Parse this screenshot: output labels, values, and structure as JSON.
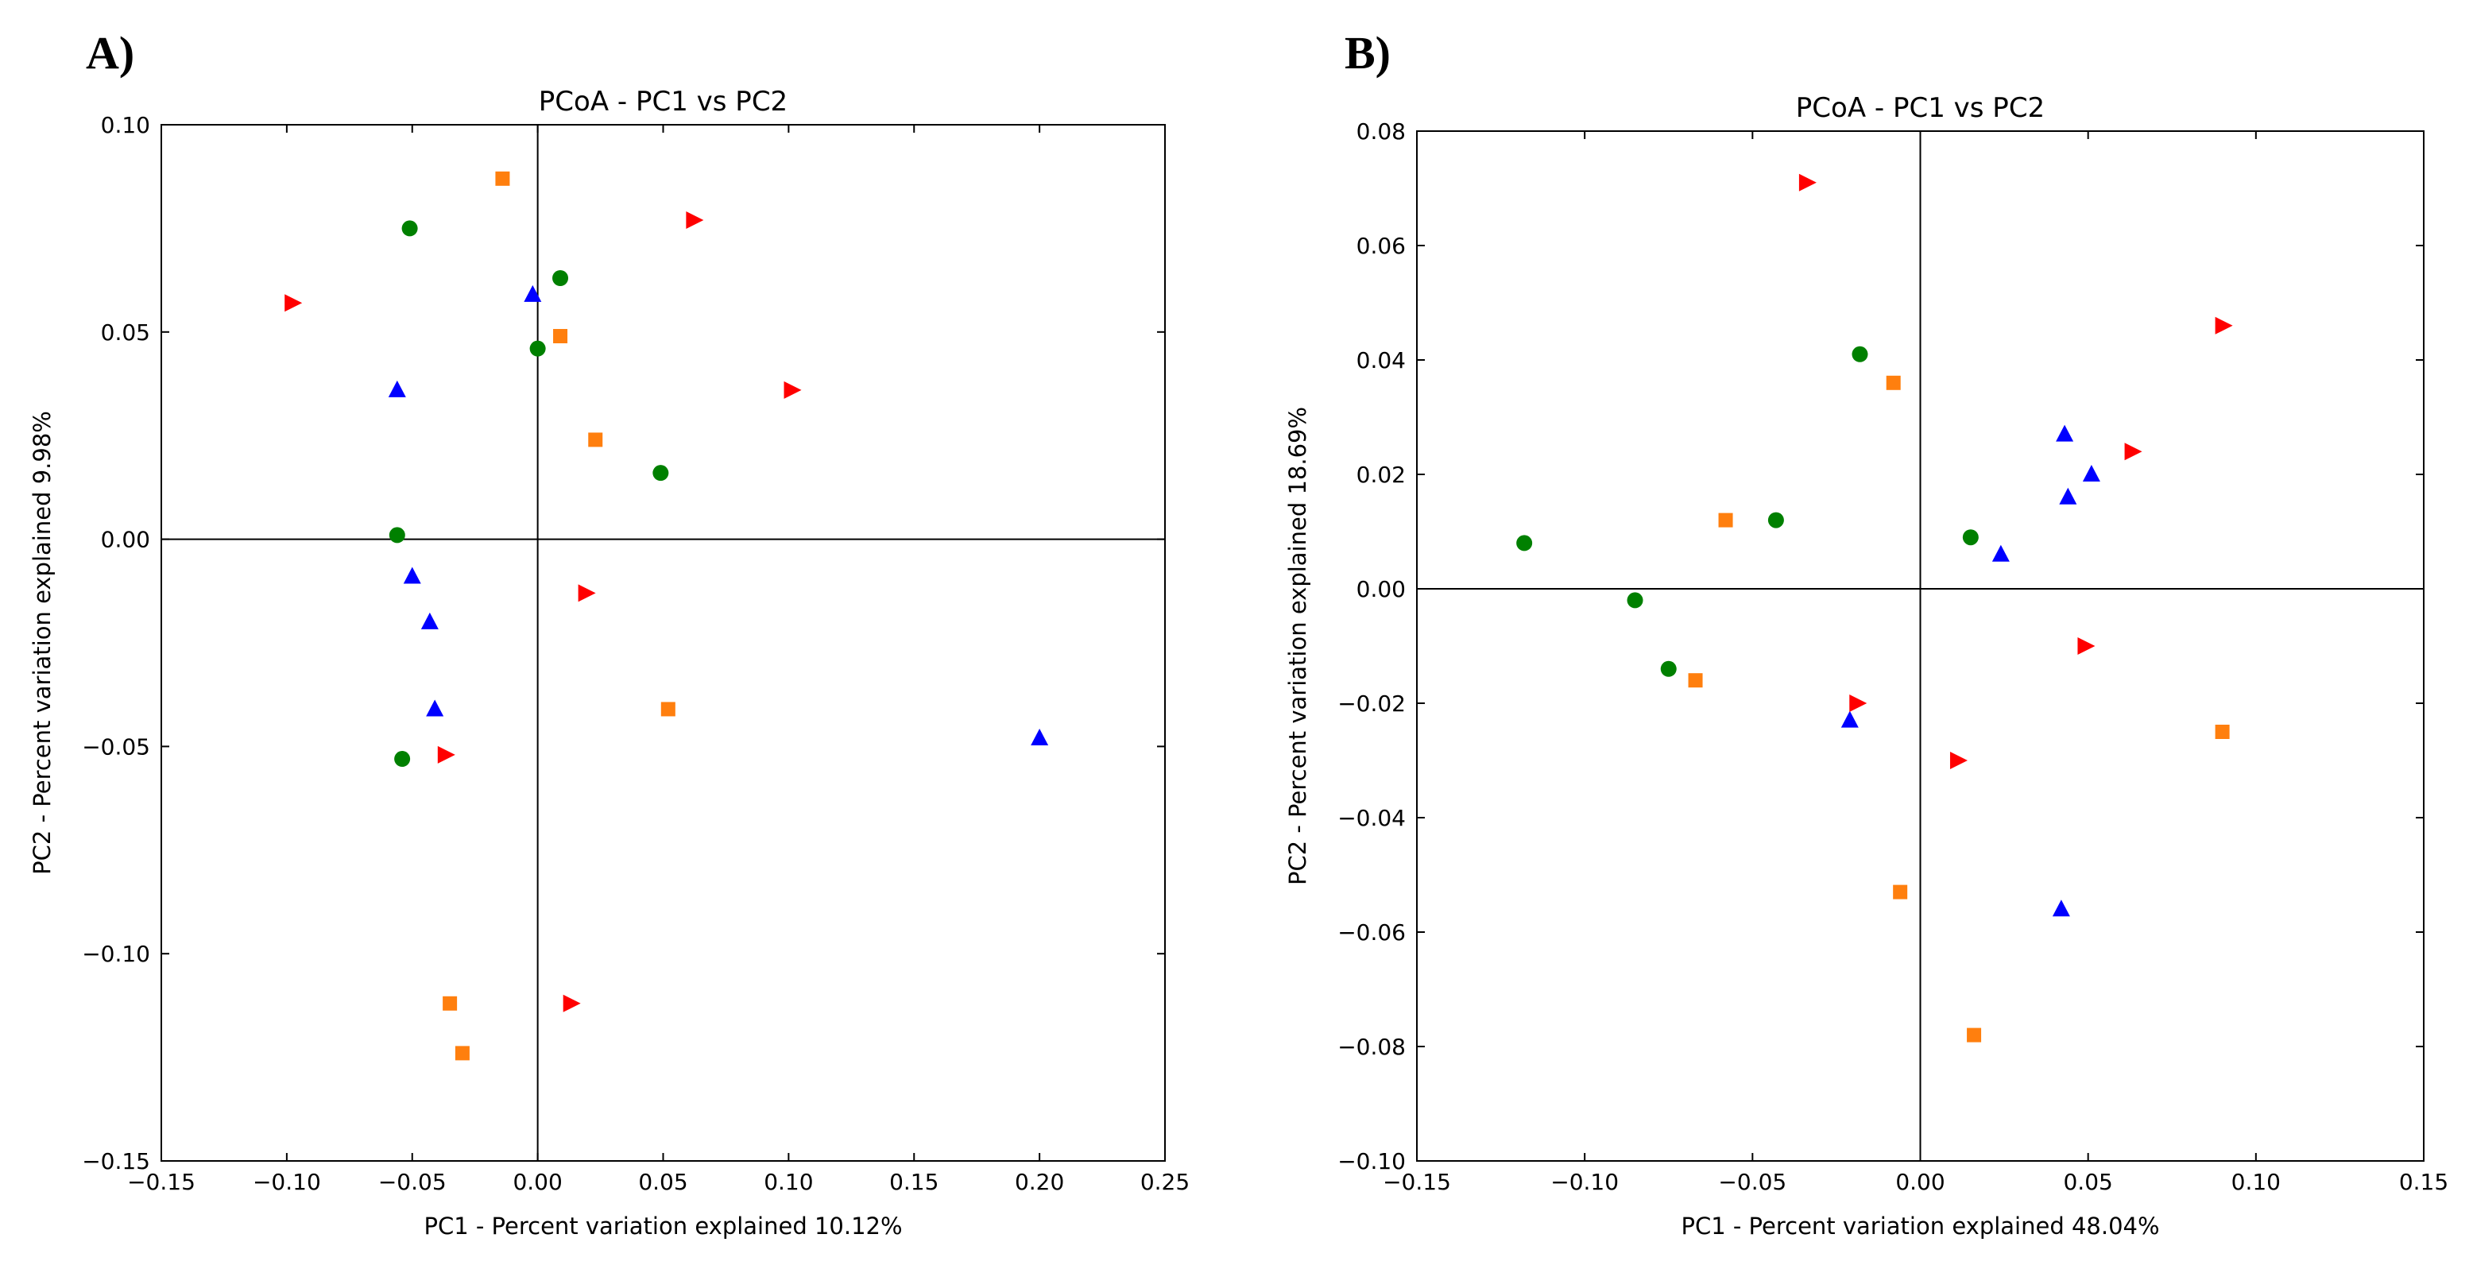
{
  "panels": [
    {
      "letter": "A)"
    },
    {
      "letter": "B)"
    }
  ],
  "chart_data": [
    {
      "type": "scatter",
      "title": "PCoA - PC1 vs PC2",
      "xlabel": "PC1 - Percent variation explained 10.12%",
      "ylabel": "PC2 - Percent variation explained 9.98%",
      "xlim": [
        -0.15,
        0.25
      ],
      "ylim": [
        -0.15,
        0.1
      ],
      "xticks": [
        -0.15,
        -0.1,
        -0.05,
        0.0,
        0.05,
        0.1,
        0.15,
        0.2,
        0.25
      ],
      "xtick_labels": [
        "−0.15",
        "−0.10",
        "−0.05",
        "0.00",
        "0.05",
        "0.10",
        "0.15",
        "0.20",
        "0.25"
      ],
      "yticks": [
        -0.15,
        -0.1,
        -0.05,
        0.0,
        0.05,
        0.1
      ],
      "ytick_labels": [
        "−0.15",
        "−0.10",
        "−0.05",
        "0.00",
        "0.05",
        "0.10"
      ],
      "zero_lines": true,
      "series": [
        {
          "marker": "circle",
          "color": "#008000",
          "points": [
            [
              -0.051,
              0.075
            ],
            [
              0.009,
              0.063
            ],
            [
              0.0,
              0.046
            ],
            [
              0.049,
              0.016
            ],
            [
              -0.056,
              0.001
            ],
            [
              -0.054,
              -0.053
            ]
          ]
        },
        {
          "marker": "triangle-up",
          "color": "#0000ff",
          "points": [
            [
              -0.002,
              0.059
            ],
            [
              -0.056,
              0.036
            ],
            [
              -0.05,
              -0.009
            ],
            [
              -0.043,
              -0.02
            ],
            [
              -0.041,
              -0.041
            ],
            [
              0.2,
              -0.048
            ]
          ]
        },
        {
          "marker": "triangle-right",
          "color": "#ff0000",
          "points": [
            [
              -0.098,
              0.057
            ],
            [
              0.062,
              0.077
            ],
            [
              0.101,
              0.036
            ],
            [
              0.019,
              -0.013
            ],
            [
              -0.037,
              -0.052
            ],
            [
              0.013,
              -0.112
            ]
          ]
        },
        {
          "marker": "square",
          "color": "#ff7f0e",
          "points": [
            [
              -0.014,
              0.087
            ],
            [
              0.009,
              0.049
            ],
            [
              0.023,
              0.024
            ],
            [
              0.052,
              -0.041
            ],
            [
              -0.035,
              -0.112
            ],
            [
              -0.03,
              -0.124
            ]
          ]
        }
      ]
    },
    {
      "type": "scatter",
      "title": "PCoA - PC1 vs PC2",
      "xlabel": "PC1 - Percent variation explained 48.04%",
      "ylabel": "PC2 - Percent variation explained 18.69%",
      "xlim": [
        -0.15,
        0.15
      ],
      "ylim": [
        -0.1,
        0.08
      ],
      "xticks": [
        -0.15,
        -0.1,
        -0.05,
        0.0,
        0.05,
        0.1,
        0.15
      ],
      "xtick_labels": [
        "−0.15",
        "−0.10",
        "−0.05",
        "0.00",
        "0.05",
        "0.10",
        "0.15"
      ],
      "yticks": [
        -0.1,
        -0.08,
        -0.06,
        -0.04,
        -0.02,
        0.0,
        0.02,
        0.04,
        0.06,
        0.08
      ],
      "ytick_labels": [
        "−0.10",
        "−0.08",
        "−0.06",
        "−0.04",
        "−0.02",
        "0.00",
        "0.02",
        "0.04",
        "0.06",
        "0.08"
      ],
      "zero_lines": true,
      "series": [
        {
          "marker": "circle",
          "color": "#008000",
          "points": [
            [
              -0.018,
              0.041
            ],
            [
              -0.043,
              0.012
            ],
            [
              0.015,
              0.009
            ],
            [
              -0.118,
              0.008
            ],
            [
              -0.085,
              -0.002
            ],
            [
              -0.075,
              -0.014
            ]
          ]
        },
        {
          "marker": "triangle-up",
          "color": "#0000ff",
          "points": [
            [
              0.043,
              0.027
            ],
            [
              0.051,
              0.02
            ],
            [
              0.044,
              0.016
            ],
            [
              0.024,
              0.006
            ],
            [
              -0.021,
              -0.023
            ],
            [
              0.042,
              -0.056
            ]
          ]
        },
        {
          "marker": "triangle-right",
          "color": "#ff0000",
          "points": [
            [
              -0.034,
              0.071
            ],
            [
              0.09,
              0.046
            ],
            [
              0.063,
              0.024
            ],
            [
              0.049,
              -0.01
            ],
            [
              -0.019,
              -0.02
            ],
            [
              0.011,
              -0.03
            ]
          ]
        },
        {
          "marker": "square",
          "color": "#ff7f0e",
          "points": [
            [
              -0.008,
              0.036
            ],
            [
              -0.058,
              0.012
            ],
            [
              -0.067,
              -0.016
            ],
            [
              0.09,
              -0.025
            ],
            [
              -0.006,
              -0.053
            ],
            [
              0.016,
              -0.078
            ]
          ]
        }
      ]
    }
  ]
}
